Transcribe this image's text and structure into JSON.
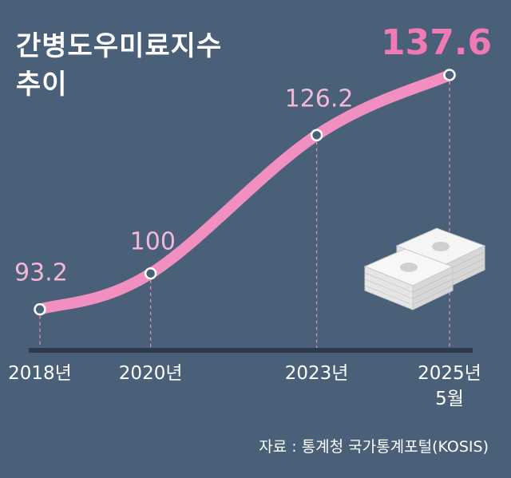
{
  "chart_data": {
    "type": "line",
    "title_lines": [
      "간병도우미료지수",
      "추이"
    ],
    "categories": [
      "2018년",
      "2020년",
      "2023년",
      "2025년 5월"
    ],
    "x_positions": [
      2018,
      2020,
      2023,
      2025.4
    ],
    "series": [
      {
        "values": [
          93.2,
          100,
          126.2,
          137.6
        ]
      }
    ],
    "value_labels": [
      "93.2",
      "100",
      "126.2",
      "137.6"
    ],
    "xlabel": "",
    "ylabel": "",
    "ylim": [
      80,
      145
    ],
    "grid": false,
    "legend": "none",
    "colors": {
      "background": "#4a5f78",
      "line": "#f08fc0",
      "highlight_label": "#f07ab4",
      "label": "#f2b8d6",
      "text": "#ffffff",
      "baseline": "#2d3a4c"
    },
    "source": "자료 : 통계청 국가통계포털(KOSIS)"
  }
}
